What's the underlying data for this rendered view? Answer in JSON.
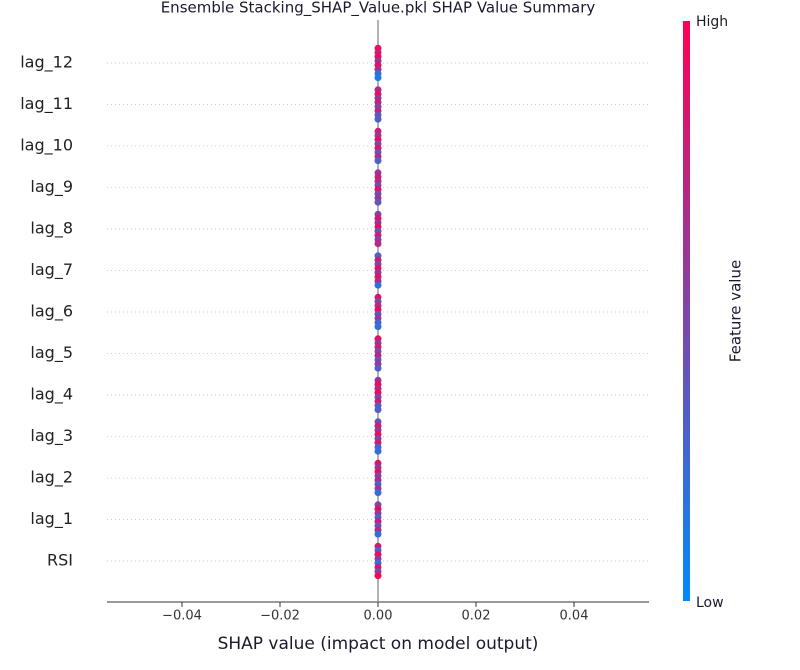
{
  "chart_data": {
    "type": "beeswarm",
    "title": "Ensemble Stacking_SHAP_Value.pkl SHAP Value Summary",
    "x_label": "SHAP value (impact on model output)",
    "categories": [
      "lag_12",
      "lag_11",
      "lag_10",
      "lag_9",
      "lag_8",
      "lag_7",
      "lag_6",
      "lag_5",
      "lag_4",
      "lag_3",
      "lag_2",
      "lag_1",
      "RSI"
    ],
    "rows": [
      {
        "values": [
          0,
          0,
          0,
          0,
          0,
          0,
          0,
          0
        ],
        "feature_values": [
          0.9,
          0.8,
          0.95,
          0.6,
          0.85,
          0.7,
          0.2,
          0.1
        ]
      },
      {
        "values": [
          0,
          0,
          0,
          0,
          0,
          0,
          0,
          0
        ],
        "feature_values": [
          0.7,
          0.9,
          0.6,
          0.8,
          0.5,
          0.75,
          0.4,
          0.3
        ]
      },
      {
        "values": [
          0,
          0,
          0,
          0,
          0,
          0,
          0,
          0
        ],
        "feature_values": [
          0.8,
          0.6,
          0.9,
          0.5,
          0.85,
          0.4,
          0.7,
          0.3
        ]
      },
      {
        "values": [
          0,
          0,
          0,
          0,
          0,
          0,
          0,
          0
        ],
        "feature_values": [
          0.6,
          0.8,
          0.7,
          0.5,
          0.9,
          0.45,
          0.6,
          0.4
        ]
      },
      {
        "values": [
          0,
          0,
          0,
          0,
          0,
          0,
          0,
          0
        ],
        "feature_values": [
          0.5,
          0.85,
          0.6,
          0.9,
          0.4,
          0.8,
          0.55,
          0.7
        ]
      },
      {
        "values": [
          0,
          0,
          0,
          0,
          0,
          0,
          0,
          0
        ],
        "feature_values": [
          0.3,
          0.8,
          0.5,
          0.9,
          0.6,
          0.85,
          0.7,
          0.2
        ]
      },
      {
        "values": [
          0,
          0,
          0,
          0,
          0,
          0,
          0,
          0
        ],
        "feature_values": [
          0.85,
          0.5,
          0.7,
          0.9,
          0.4,
          0.6,
          0.3,
          0.2
        ]
      },
      {
        "values": [
          0,
          0,
          0,
          0,
          0,
          0,
          0,
          0
        ],
        "feature_values": [
          0.9,
          0.6,
          0.8,
          0.5,
          0.7,
          0.4,
          0.6,
          0.3
        ]
      },
      {
        "values": [
          0,
          0,
          0,
          0,
          0,
          0,
          0,
          0
        ],
        "feature_values": [
          0.6,
          0.9,
          0.7,
          0.95,
          0.5,
          0.8,
          0.4,
          0.3
        ]
      },
      {
        "values": [
          0,
          0,
          0,
          0,
          0,
          0,
          0,
          0
        ],
        "feature_values": [
          0.4,
          0.8,
          0.6,
          0.9,
          0.5,
          0.85,
          0.3,
          0.2
        ]
      },
      {
        "values": [
          0,
          0,
          0,
          0,
          0,
          0,
          0,
          0
        ],
        "feature_values": [
          0.85,
          0.6,
          0.9,
          0.5,
          0.7,
          0.3,
          0.6,
          0.2
        ]
      },
      {
        "values": [
          0,
          0,
          0,
          0,
          0,
          0,
          0,
          0
        ],
        "feature_values": [
          0.5,
          0.9,
          0.6,
          0.3,
          0.8,
          0.4,
          0.7,
          0.2
        ]
      },
      {
        "values": [
          0,
          0,
          0,
          0,
          0,
          0,
          0,
          0
        ],
        "feature_values": [
          0.8,
          0.3,
          0.9,
          0.6,
          0.2,
          0.85,
          0.5,
          0.95
        ]
      }
    ],
    "xlim": [
      -0.0553,
      0.0553
    ],
    "xticks": [
      {
        "value": -0.04,
        "label": "−0.04"
      },
      {
        "value": -0.02,
        "label": "−0.02"
      },
      {
        "value": 0,
        "label": "0.00"
      },
      0.02,
      0.04
    ],
    "colormap": [
      "#008afb",
      "#ff0052"
    ],
    "colorbar": {
      "label": "Feature value",
      "high": "High",
      "low": "Low"
    }
  }
}
